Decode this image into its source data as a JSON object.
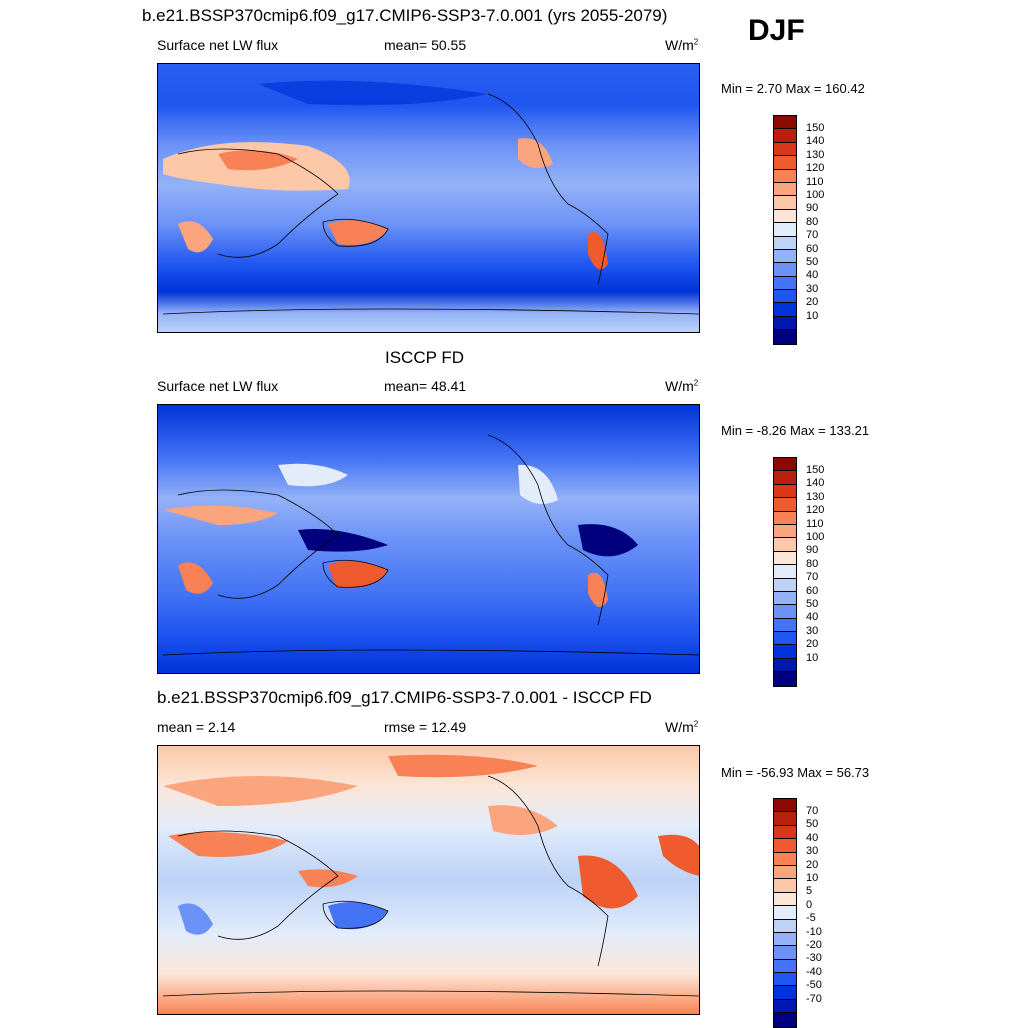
{
  "season": "DJF",
  "colors": {
    "scale_abs": [
      "#00007f",
      "#0018b0",
      "#0033d9",
      "#1f55f0",
      "#4474f5",
      "#6b92f7",
      "#94b2f7",
      "#bcd2f7",
      "#e2ecfb",
      "#fbe6d8",
      "#fcc8a8",
      "#fba57e",
      "#f88155",
      "#ef5a2e",
      "#d9361a",
      "#b81f0c",
      "#8a0a00"
    ],
    "scale_diff": [
      "#00007f",
      "#0018b0",
      "#0033d9",
      "#1f55f0",
      "#4474f5",
      "#6b92f7",
      "#94b2f7",
      "#bcd2f7",
      "#e2ecfb",
      "#fbe6d8",
      "#fcc8a8",
      "#fba57e",
      "#f88155",
      "#ef5a2e",
      "#d9361a",
      "#b81f0c",
      "#8a0a00"
    ]
  },
  "panels": [
    {
      "title": "b.e21.BSSP370cmip6.f09_g17.CMIP6-SSP3-7.0.001 (yrs 2055-2079)",
      "left_label": "Surface net LW flux",
      "center_label": "mean=  50.55",
      "units": "W/m",
      "units_sup": "2",
      "minmax": "Min =   2.70 Max = 160.42",
      "colorbar_labels": [
        "150",
        "140",
        "130",
        "120",
        "110",
        "100",
        "90",
        "80",
        "70",
        "60",
        "50",
        "40",
        "30",
        "20",
        "10"
      ]
    },
    {
      "title": "ISCCP FD",
      "left_label": "Surface net LW flux",
      "center_label": "mean=  48.41",
      "units": "W/m",
      "units_sup": "2",
      "minmax": "Min =  -8.26 Max = 133.21",
      "colorbar_labels": [
        "150",
        "140",
        "130",
        "120",
        "110",
        "100",
        "90",
        "80",
        "70",
        "60",
        "50",
        "40",
        "30",
        "20",
        "10"
      ]
    },
    {
      "title": "b.e21.BSSP370cmip6.f09_g17.CMIP6-SSP3-7.0.001 - ISCCP FD",
      "left_label": "mean =   2.14",
      "center_label": "rmse =  12.49",
      "units": "W/m",
      "units_sup": "2",
      "minmax": "Min = -56.93 Max =  56.73",
      "colorbar_labels": [
        "70",
        "50",
        "40",
        "30",
        "20",
        "10",
        "5",
        "0",
        "-5",
        "-10",
        "-20",
        "-30",
        "-40",
        "-50",
        "-70"
      ]
    }
  ]
}
